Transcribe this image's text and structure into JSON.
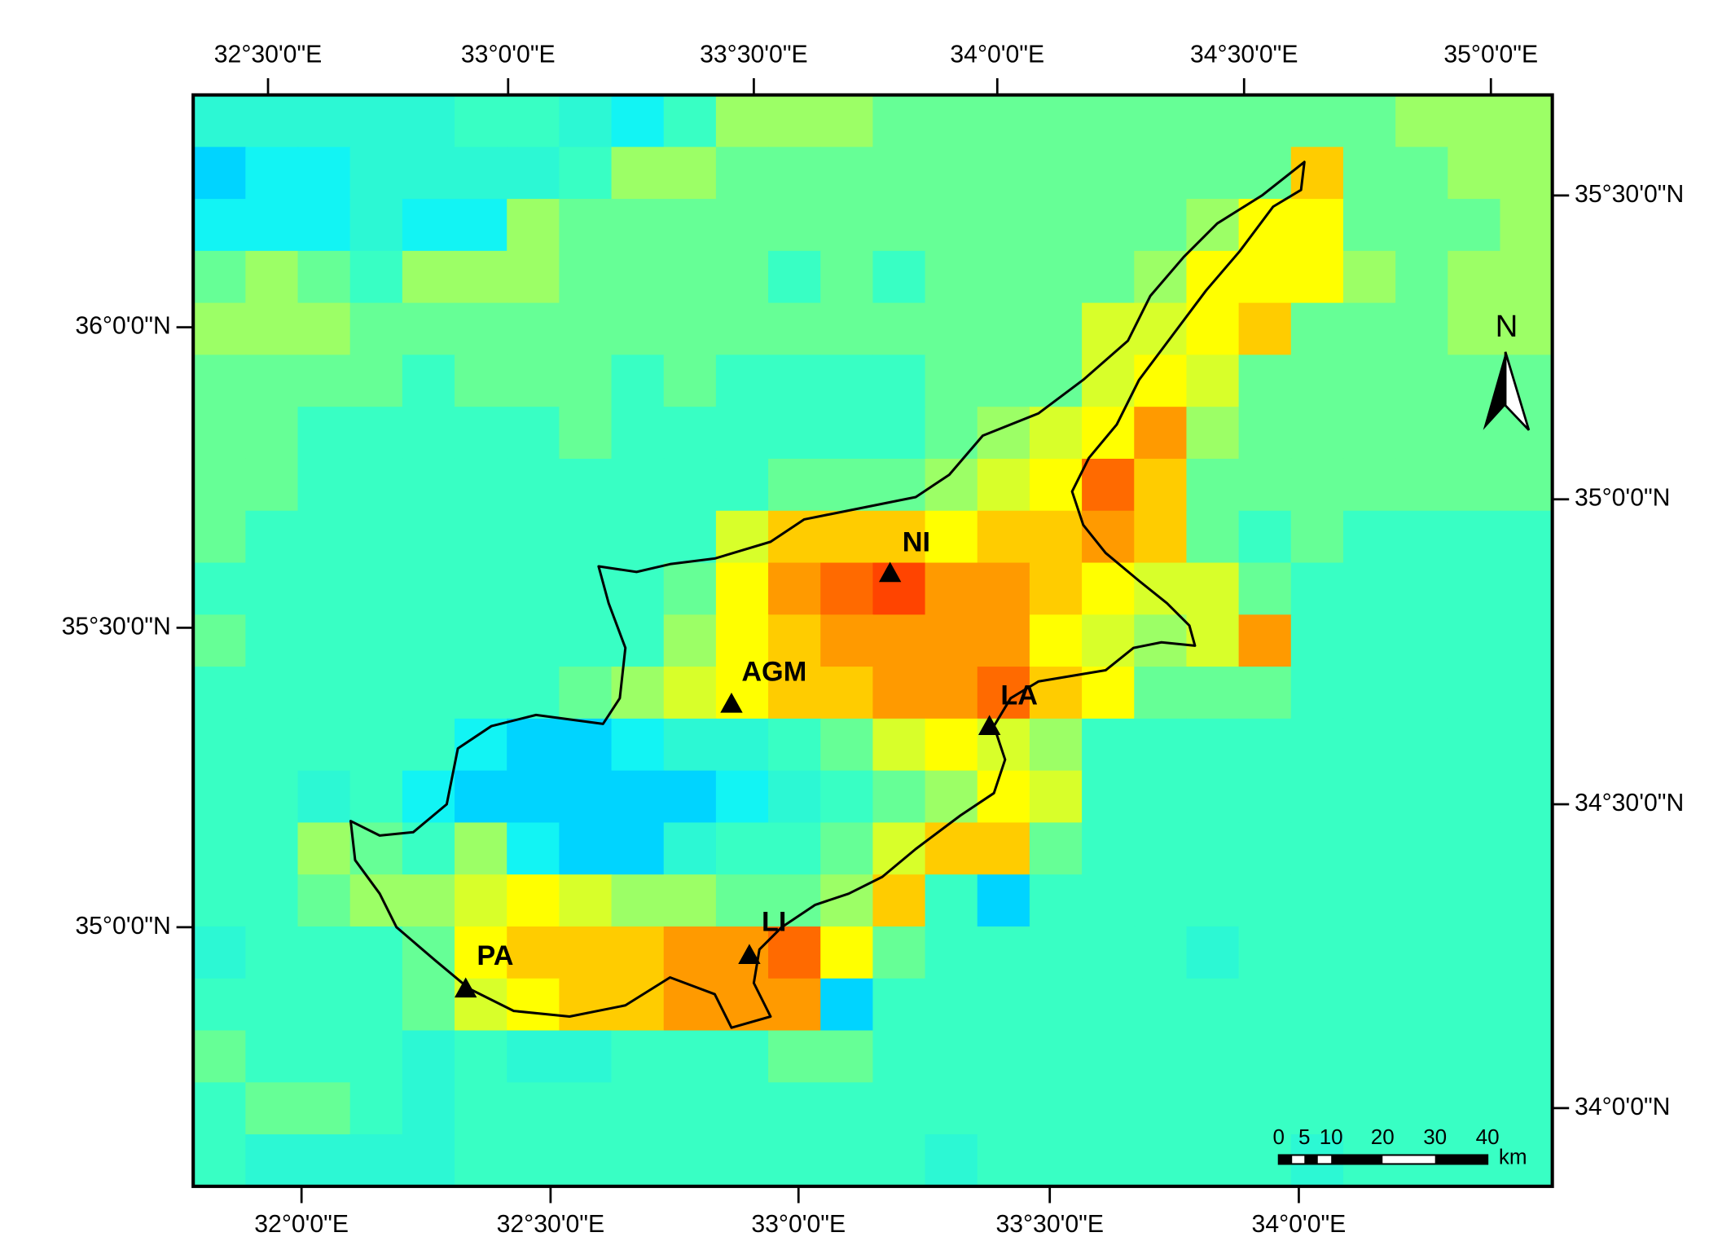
{
  "map": {
    "top_axis_labels": [
      "32°30'0\"E",
      "33°0'0\"E",
      "33°30'0\"E",
      "34°0'0\"E",
      "34°30'0\"E",
      "35°0'0\"E"
    ],
    "bottom_axis_labels": [
      "32°0'0\"E",
      "32°30'0\"E",
      "33°0'0\"E",
      "33°30'0\"E",
      "34°0'0\"E"
    ],
    "left_axis_labels": [
      "36°0'0\"N",
      "35°30'0\"N",
      "35°0'0\"N"
    ],
    "right_axis_labels": [
      "35°30'0\"N",
      "35°0'0\"N",
      "34°30'0\"N",
      "34°0'0\"N"
    ],
    "sites": [
      {
        "label": "NI"
      },
      {
        "label": "AGM"
      },
      {
        "label": "LA"
      },
      {
        "label": "LI"
      },
      {
        "label": "PA"
      }
    ],
    "north_label": "N",
    "scale_bar": {
      "ticks": [
        "0",
        "5",
        "10",
        "20",
        "30",
        "40"
      ],
      "unit": "km"
    },
    "raster": {
      "palette": [
        "#00d4ff",
        "#12f4f4",
        "#2cf8d4",
        "#38ffc4",
        "#66ff96",
        "#9cff66",
        "#d8ff2a",
        "#ffff00",
        "#ffcc00",
        "#ff9a00",
        "#ff6a00",
        "#ff4400"
      ],
      "cells": [
        [
          2,
          2,
          2,
          2,
          2,
          3,
          3,
          2,
          1,
          3,
          5,
          5,
          5,
          4,
          4,
          4,
          4,
          4,
          4,
          4,
          4,
          4,
          4,
          5,
          5,
          5
        ],
        [
          0,
          1,
          1,
          2,
          2,
          2,
          2,
          3,
          5,
          5,
          4,
          4,
          4,
          4,
          4,
          4,
          4,
          4,
          4,
          4,
          4,
          8,
          4,
          4,
          5,
          5
        ],
        [
          1,
          1,
          1,
          2,
          1,
          1,
          5,
          4,
          4,
          4,
          4,
          4,
          4,
          4,
          4,
          4,
          4,
          4,
          4,
          5,
          7,
          7,
          4,
          4,
          4,
          5
        ],
        [
          4,
          5,
          4,
          3,
          5,
          5,
          5,
          4,
          4,
          4,
          4,
          3,
          4,
          3,
          4,
          4,
          4,
          4,
          5,
          7,
          7,
          7,
          5,
          4,
          5,
          5
        ],
        [
          5,
          5,
          5,
          4,
          4,
          4,
          4,
          4,
          4,
          4,
          4,
          4,
          4,
          4,
          4,
          4,
          4,
          6,
          6,
          7,
          8,
          4,
          4,
          4,
          5,
          5
        ],
        [
          4,
          4,
          4,
          4,
          3,
          4,
          4,
          4,
          3,
          4,
          3,
          3,
          3,
          3,
          4,
          4,
          4,
          6,
          7,
          6,
          4,
          4,
          4,
          4,
          4,
          4
        ],
        [
          4,
          4,
          3,
          3,
          3,
          3,
          3,
          4,
          3,
          3,
          3,
          3,
          3,
          3,
          4,
          5,
          6,
          7,
          9,
          5,
          4,
          4,
          4,
          4,
          4,
          4
        ],
        [
          4,
          4,
          3,
          3,
          3,
          3,
          3,
          3,
          3,
          3,
          3,
          4,
          4,
          4,
          5,
          6,
          7,
          10,
          8,
          4,
          4,
          4,
          4,
          4,
          4,
          4
        ],
        [
          4,
          3,
          3,
          3,
          3,
          3,
          3,
          3,
          3,
          3,
          6,
          8,
          8,
          8,
          7,
          8,
          8,
          9,
          8,
          4,
          3,
          4,
          3,
          3,
          3,
          3
        ],
        [
          3,
          3,
          3,
          3,
          3,
          3,
          3,
          3,
          3,
          4,
          7,
          9,
          10,
          11,
          9,
          9,
          8,
          7,
          6,
          6,
          4,
          3,
          3,
          3,
          3,
          3
        ],
        [
          4,
          3,
          3,
          3,
          3,
          3,
          3,
          3,
          3,
          5,
          7,
          8,
          9,
          9,
          9,
          9,
          7,
          6,
          5,
          6,
          9,
          3,
          3,
          3,
          3,
          3
        ],
        [
          3,
          3,
          3,
          3,
          3,
          3,
          3,
          4,
          5,
          6,
          7,
          8,
          8,
          9,
          9,
          10,
          8,
          7,
          4,
          4,
          4,
          3,
          3,
          3,
          3,
          3
        ],
        [
          3,
          3,
          3,
          3,
          3,
          1,
          0,
          0,
          1,
          2,
          2,
          3,
          4,
          6,
          7,
          6,
          5,
          3,
          3,
          3,
          3,
          3,
          3,
          3,
          3,
          3
        ],
        [
          3,
          3,
          2,
          3,
          1,
          0,
          0,
          0,
          0,
          0,
          1,
          2,
          3,
          4,
          5,
          7,
          6,
          3,
          3,
          3,
          3,
          3,
          3,
          3,
          3,
          3
        ],
        [
          3,
          3,
          5,
          4,
          3,
          5,
          1,
          0,
          0,
          2,
          3,
          3,
          4,
          6,
          8,
          8,
          4,
          3,
          3,
          3,
          3,
          3,
          3,
          3,
          3,
          3
        ],
        [
          3,
          3,
          4,
          5,
          5,
          6,
          7,
          6,
          5,
          5,
          4,
          4,
          5,
          8,
          3,
          0,
          3,
          3,
          3,
          3,
          3,
          3,
          3,
          3,
          3,
          3
        ],
        [
          2,
          3,
          3,
          3,
          4,
          7,
          8,
          8,
          8,
          9,
          9,
          10,
          7,
          4,
          3,
          3,
          3,
          3,
          3,
          2,
          3,
          3,
          3,
          3,
          3,
          3
        ],
        [
          3,
          3,
          3,
          3,
          4,
          6,
          7,
          8,
          8,
          9,
          9,
          9,
          0,
          3,
          3,
          3,
          3,
          3,
          3,
          3,
          3,
          3,
          3,
          3,
          3,
          3
        ],
        [
          4,
          3,
          3,
          3,
          2,
          3,
          2,
          2,
          3,
          3,
          3,
          4,
          4,
          3,
          3,
          3,
          3,
          3,
          3,
          3,
          3,
          3,
          3,
          3,
          3,
          3
        ],
        [
          3,
          4,
          4,
          3,
          2,
          3,
          3,
          3,
          3,
          3,
          3,
          3,
          3,
          3,
          3,
          3,
          3,
          3,
          3,
          3,
          3,
          3,
          3,
          3,
          3,
          3
        ],
        [
          3,
          2,
          2,
          2,
          2,
          3,
          3,
          3,
          3,
          3,
          3,
          3,
          3,
          3,
          2,
          3,
          3,
          3,
          3,
          3,
          3,
          2,
          3,
          3,
          3,
          3
        ]
      ]
    }
  }
}
